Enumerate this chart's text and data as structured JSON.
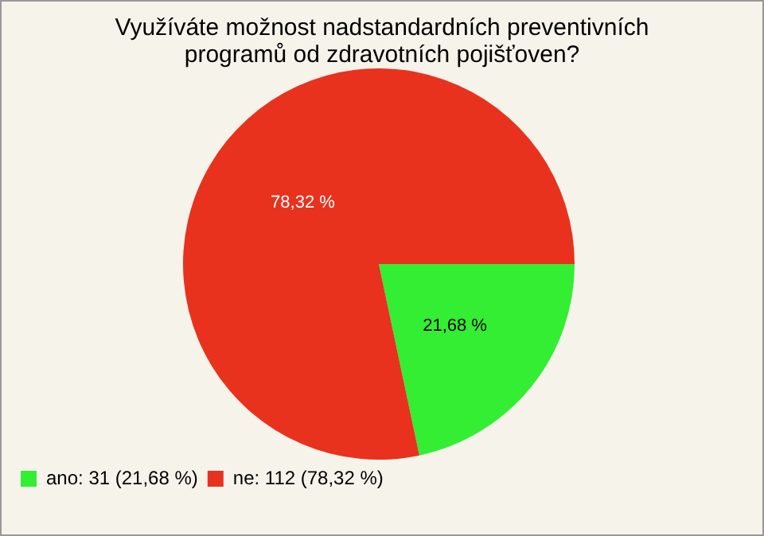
{
  "chart_data": {
    "type": "pie",
    "title": "Využíváte možnost nadstandardních preventivních programů od zdravotních pojišťoven?",
    "categories": [
      "ano: 31 (21,68 %)",
      "ne: 112 (78,32 %)"
    ],
    "values": [
      21.68,
      78.32
    ],
    "colors": [
      "#33ee33",
      "#e8321e"
    ],
    "value_labels": [
      "21,68 %",
      "78,32 %"
    ],
    "legend": "bottom left"
  }
}
